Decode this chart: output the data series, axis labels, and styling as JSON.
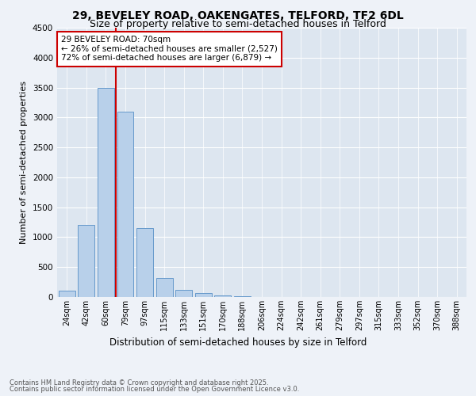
{
  "title_line1": "29, BEVELEY ROAD, OAKENGATES, TELFORD, TF2 6DL",
  "title_line2": "Size of property relative to semi-detached houses in Telford",
  "xlabel": "Distribution of semi-detached houses by size in Telford",
  "ylabel": "Number of semi-detached properties",
  "categories": [
    "24sqm",
    "42sqm",
    "60sqm",
    "79sqm",
    "97sqm",
    "115sqm",
    "133sqm",
    "151sqm",
    "170sqm",
    "188sqm",
    "206sqm",
    "224sqm",
    "242sqm",
    "261sqm",
    "279sqm",
    "297sqm",
    "315sqm",
    "333sqm",
    "352sqm",
    "370sqm",
    "388sqm"
  ],
  "values": [
    100,
    1200,
    3500,
    3100,
    1150,
    320,
    120,
    70,
    30,
    10,
    5,
    2,
    1,
    0,
    0,
    0,
    0,
    0,
    0,
    0,
    0
  ],
  "bar_color": "#b8d0ea",
  "bar_edgecolor": "#6699cc",
  "vline_color": "#cc0000",
  "vline_pos": 2.5,
  "annotation_box_text": "29 BEVELEY ROAD: 70sqm\n← 26% of semi-detached houses are smaller (2,527)\n72% of semi-detached houses are larger (6,879) →",
  "annotation_box_edgecolor": "#cc0000",
  "ylim": [
    0,
    4500
  ],
  "yticks": [
    0,
    500,
    1000,
    1500,
    2000,
    2500,
    3000,
    3500,
    4000,
    4500
  ],
  "footer_line1": "Contains HM Land Registry data © Crown copyright and database right 2025.",
  "footer_line2": "Contains public sector information licensed under the Open Government Licence v3.0.",
  "bg_color": "#eef2f8",
  "plot_bg_color": "#dde6f0",
  "title_fontsize": 10,
  "subtitle_fontsize": 9,
  "ylabel_fontsize": 8,
  "xlabel_fontsize": 8.5,
  "tick_fontsize": 7,
  "footer_fontsize": 6,
  "annot_fontsize": 7.5
}
